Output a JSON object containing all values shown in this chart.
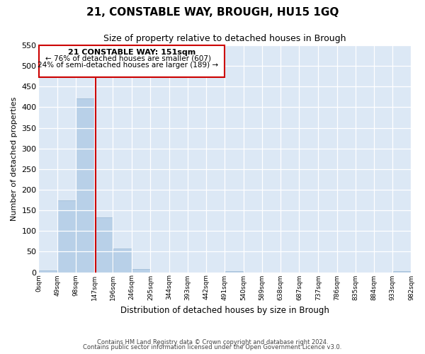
{
  "title": "21, CONSTABLE WAY, BROUGH, HU15 1GQ",
  "subtitle": "Size of property relative to detached houses in Brough",
  "xlabel": "Distribution of detached houses by size in Brough",
  "ylabel": "Number of detached properties",
  "bin_edges": [
    0,
    49,
    98,
    147,
    196,
    246,
    295,
    344,
    393,
    442,
    491,
    540,
    589,
    638,
    687,
    737,
    786,
    835,
    884,
    933,
    982
  ],
  "bar_labels": [
    "0sqm",
    "49sqm",
    "98sqm",
    "147sqm",
    "196sqm",
    "246sqm",
    "295sqm",
    "344sqm",
    "393sqm",
    "442sqm",
    "491sqm",
    "540sqm",
    "589sqm",
    "638sqm",
    "687sqm",
    "737sqm",
    "786sqm",
    "835sqm",
    "884sqm",
    "933sqm",
    "982sqm"
  ],
  "counts": [
    5,
    175,
    422,
    133,
    58,
    7,
    0,
    0,
    0,
    0,
    3,
    0,
    0,
    0,
    0,
    0,
    0,
    0,
    0,
    3
  ],
  "bar_color": "#b8d0e8",
  "bar_edgecolor": "#9ab8d4",
  "property_line_x": 151,
  "property_line_color": "#cc0000",
  "annotation_title": "21 CONSTABLE WAY: 151sqm",
  "annotation_line1": "← 76% of detached houses are smaller (607)",
  "annotation_line2": "24% of semi-detached houses are larger (189) →",
  "annotation_box_color": "#cc0000",
  "ylim": [
    0,
    550
  ],
  "yticks": [
    0,
    50,
    100,
    150,
    200,
    250,
    300,
    350,
    400,
    450,
    500,
    550
  ],
  "footer1": "Contains HM Land Registry data © Crown copyright and database right 2024.",
  "footer2": "Contains public sector information licensed under the Open Government Licence v3.0.",
  "figsize": [
    6.0,
    5.0
  ],
  "dpi": 100
}
